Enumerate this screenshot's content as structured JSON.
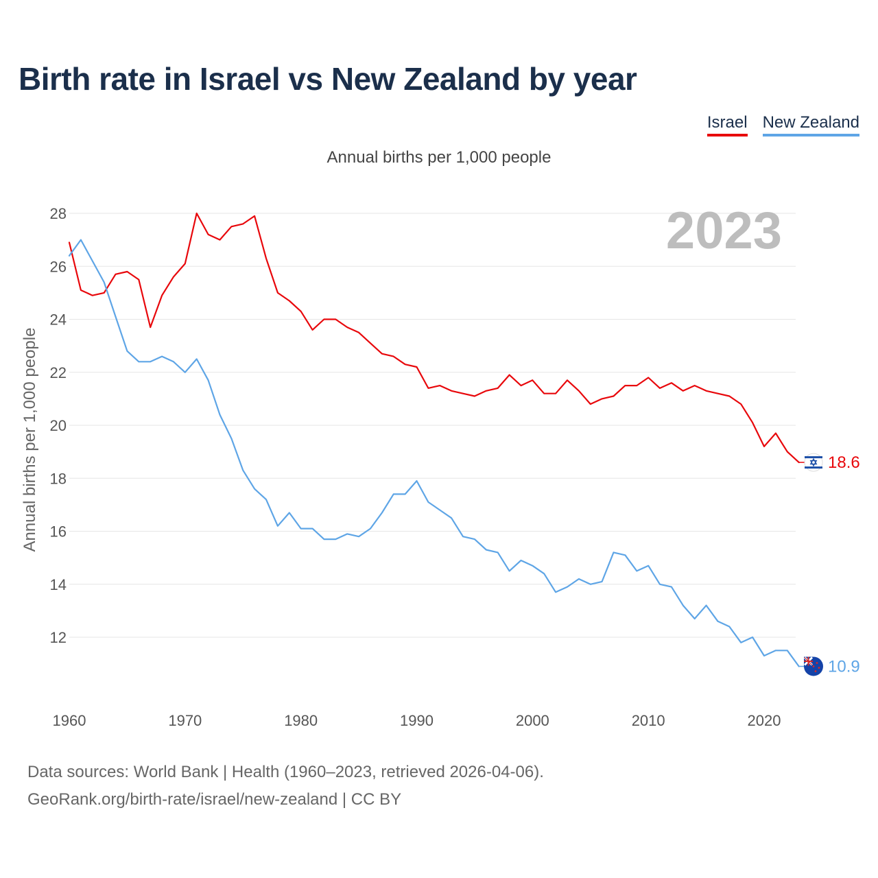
{
  "title": "Birth rate in Israel vs New Zealand by year",
  "subtitle": "Annual births per 1,000 people",
  "legend": [
    {
      "label": "Israel",
      "color": "#e8070b"
    },
    {
      "label": "New Zealand",
      "color": "#5ea5e6"
    }
  ],
  "footer": {
    "line1": "Data sources: World Bank | Health (1960–2023, retrieved 2026-04-06).",
    "line2": "GeoRank.org/birth-rate/israel/new-zealand | CC BY"
  },
  "chart_data": {
    "type": "line",
    "title": "Birth rate in Israel vs New Zealand by year",
    "subtitle": "Annual births per 1,000 people",
    "xlabel": "",
    "ylabel": "Annual births per 1,000 people",
    "xlim": [
      1960,
      2024.5
    ],
    "ylim": [
      10,
      29
    ],
    "xticks": [
      1960,
      1970,
      1980,
      1990,
      2000,
      2010,
      2020
    ],
    "yticks": [
      12,
      14,
      16,
      18,
      20,
      22,
      24,
      26,
      28
    ],
    "grid": true,
    "current_year_label": "2023",
    "x": [
      1960,
      1961,
      1962,
      1963,
      1964,
      1965,
      1966,
      1967,
      1968,
      1969,
      1970,
      1971,
      1972,
      1973,
      1974,
      1975,
      1976,
      1977,
      1978,
      1979,
      1980,
      1981,
      1982,
      1983,
      1984,
      1985,
      1986,
      1987,
      1988,
      1989,
      1990,
      1991,
      1992,
      1993,
      1994,
      1995,
      1996,
      1997,
      1998,
      1999,
      2000,
      2001,
      2002,
      2003,
      2004,
      2005,
      2006,
      2007,
      2008,
      2009,
      2010,
      2011,
      2012,
      2013,
      2014,
      2015,
      2016,
      2017,
      2018,
      2019,
      2020,
      2021,
      2022,
      2023
    ],
    "series": [
      {
        "name": "Israel",
        "color": "#e8070b",
        "end_label": "18.6",
        "end_icon": "israel-flag-icon",
        "values": [
          26.9,
          25.1,
          24.9,
          25.0,
          25.7,
          25.8,
          25.5,
          23.7,
          24.9,
          25.6,
          26.1,
          28.0,
          27.2,
          27.0,
          27.5,
          27.6,
          27.9,
          26.3,
          25.0,
          24.7,
          24.3,
          23.6,
          24.0,
          24.0,
          23.7,
          23.5,
          23.1,
          22.7,
          22.6,
          22.3,
          22.2,
          21.4,
          21.5,
          21.3,
          21.2,
          21.1,
          21.3,
          21.4,
          21.9,
          21.5,
          21.7,
          21.2,
          21.2,
          21.7,
          21.3,
          20.8,
          21.0,
          21.1,
          21.5,
          21.5,
          21.8,
          21.4,
          21.6,
          21.3,
          21.5,
          21.3,
          21.2,
          21.1,
          20.8,
          20.1,
          19.2,
          19.7,
          19.0,
          18.6
        ]
      },
      {
        "name": "New Zealand",
        "color": "#5ea5e6",
        "end_label": "10.9",
        "end_icon": "new-zealand-flag-icon",
        "values": [
          26.4,
          27.0,
          26.2,
          25.4,
          24.1,
          22.8,
          22.4,
          22.4,
          22.6,
          22.4,
          22.0,
          22.5,
          21.7,
          20.4,
          19.5,
          18.3,
          17.6,
          17.2,
          16.2,
          16.7,
          16.1,
          16.1,
          15.7,
          15.7,
          15.9,
          15.8,
          16.1,
          16.7,
          17.4,
          17.4,
          17.9,
          17.1,
          16.8,
          16.5,
          15.8,
          15.7,
          15.3,
          15.2,
          14.5,
          14.9,
          14.7,
          14.4,
          13.7,
          13.9,
          14.2,
          14.0,
          14.1,
          15.2,
          15.1,
          14.5,
          14.7,
          14.0,
          13.9,
          13.2,
          12.7,
          13.2,
          12.6,
          12.4,
          11.8,
          12.0,
          11.3,
          11.5,
          11.5,
          10.9
        ]
      }
    ]
  }
}
